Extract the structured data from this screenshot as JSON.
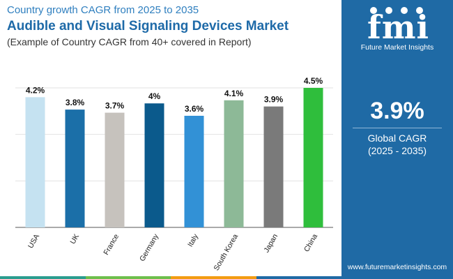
{
  "header": {
    "kicker": "Country growth CAGR from 2025 to 2035",
    "title": "Audible and Visual Signaling Devices Market",
    "subtitle": "(Example of Country CAGR from 40+ covered in Report)"
  },
  "sidebar": {
    "logo_text": "fmi",
    "logo_caption": "Future Market Insights",
    "global_value": "3.9%",
    "global_label": "Global CAGR",
    "global_period": "(2025 - 2035)",
    "url": "www.futuremarketinsights.com"
  },
  "colors": {
    "sidebar_bg": "#1f6aa5",
    "strip": [
      "#2a9d8f",
      "#6dbf4b",
      "#f39c12",
      "#1f6aa5"
    ]
  },
  "chart_data": {
    "type": "bar",
    "categories": [
      "USA",
      "UK",
      "France",
      "Germany",
      "Italy",
      "South Korea",
      "Japan",
      "China"
    ],
    "values": [
      4.2,
      3.8,
      3.7,
      4.0,
      3.6,
      4.1,
      3.9,
      4.5
    ],
    "data_labels": [
      "4.2%",
      "3.8%",
      "3.7%",
      "4%",
      "3.6%",
      "4.1%",
      "3.9%",
      "4.5%"
    ],
    "bar_colors": [
      "#c5e2f1",
      "#1b6fa8",
      "#c6c2bd",
      "#0b5a8c",
      "#3291d6",
      "#8db997",
      "#7a7a7a",
      "#2fbe3c"
    ],
    "ylim": [
      0,
      4.5
    ],
    "grid": true,
    "title": "",
    "xlabel": "",
    "ylabel": ""
  }
}
